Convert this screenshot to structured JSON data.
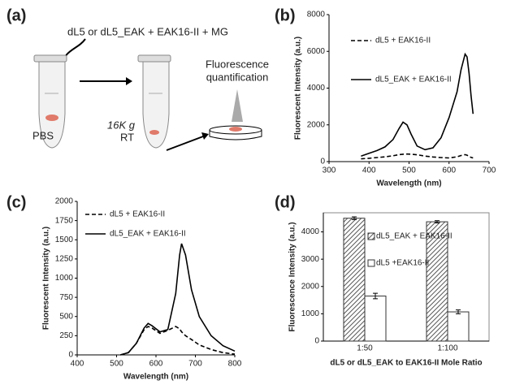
{
  "diagram": {
    "label": "(a)",
    "mix_text": "dL5 or dL5_EAK + EAK16-II + MG",
    "buffer": "PBS",
    "speed": "16K g",
    "temperature": "RT",
    "detection": [
      "Fluorescence",
      "quantification"
    ]
  },
  "chart_data": [
    {
      "type": "line",
      "label": "(b)",
      "xlabel": "Wavelength (nm)",
      "ylabel": "Fluorescent Intensity (a.u.)",
      "x": [
        380,
        400,
        420,
        440,
        460,
        475,
        485,
        495,
        505,
        520,
        540,
        560,
        580,
        600,
        620,
        630,
        640,
        645,
        650,
        655,
        660
      ],
      "series": [
        {
          "name": "dL5 +  EAK16-II",
          "color": "#000000",
          "dash": true,
          "values": [
            150,
            180,
            220,
            260,
            320,
            380,
            400,
            410,
            400,
            370,
            300,
            250,
            220,
            200,
            260,
            330,
            380,
            350,
            280,
            230,
            200
          ]
        },
        {
          "name": "dL5_EAK +  EAK16-II",
          "color": "#000000",
          "dash": false,
          "values": [
            300,
            450,
            600,
            800,
            1200,
            1800,
            2150,
            2000,
            1500,
            850,
            650,
            750,
            1300,
            2400,
            3800,
            5000,
            5850,
            5700,
            4800,
            3600,
            2600
          ]
        }
      ],
      "xlim": [
        300,
        700
      ],
      "xticks": [
        300,
        400,
        500,
        600,
        700
      ],
      "ylim": [
        0,
        8000
      ],
      "yticks": [
        0,
        2000,
        4000,
        6000,
        8000
      ]
    },
    {
      "type": "line",
      "label": "(c)",
      "xlabel": "Wavelength (nm)",
      "ylabel": "Fluorescent Intensity (a.u.)",
      "x": [
        510,
        530,
        550,
        570,
        580,
        590,
        610,
        630,
        650,
        660,
        665,
        675,
        690,
        710,
        740,
        770,
        800
      ],
      "series": [
        {
          "name": "dL5 + EAK16-II",
          "color": "#000000",
          "dash": true,
          "values": [
            0,
            30,
            150,
            330,
            370,
            350,
            280,
            320,
            370,
            340,
            300,
            250,
            200,
            130,
            70,
            30,
            10
          ]
        },
        {
          "name": "dL5_EAK + EAK16-II",
          "color": "#000000",
          "dash": false,
          "values": [
            0,
            30,
            150,
            350,
            410,
            380,
            300,
            330,
            800,
            1300,
            1450,
            1300,
            850,
            500,
            250,
            120,
            50
          ]
        }
      ],
      "xlim": [
        400,
        800
      ],
      "xticks": [
        400,
        500,
        600,
        700,
        800
      ],
      "ylim": [
        0,
        2000
      ],
      "yticks": [
        0,
        250,
        500,
        750,
        1000,
        1250,
        1500,
        1750,
        2000
      ]
    },
    {
      "type": "bar",
      "label": "(d)",
      "xlabel": "dL5 or dL5_EAK to EAK16-II Mole Ratio",
      "ylabel": "Fluorescence Intensity (a.u.)",
      "categories": [
        "1:50",
        "1:100"
      ],
      "series": [
        {
          "name": "dL5_EAK + EAK16-II",
          "color": "#666666",
          "hatch": true,
          "values": [
            4500,
            4370
          ],
          "errors": [
            50,
            40
          ]
        },
        {
          "name": "dL5 +EAK16-II",
          "color": "#ffffff",
          "hatch": false,
          "values": [
            1650,
            1070
          ],
          "errors": [
            100,
            70
          ]
        }
      ],
      "ylim": [
        0,
        4700
      ],
      "yticks": [
        0,
        1000,
        2000,
        3000,
        4000
      ]
    }
  ]
}
